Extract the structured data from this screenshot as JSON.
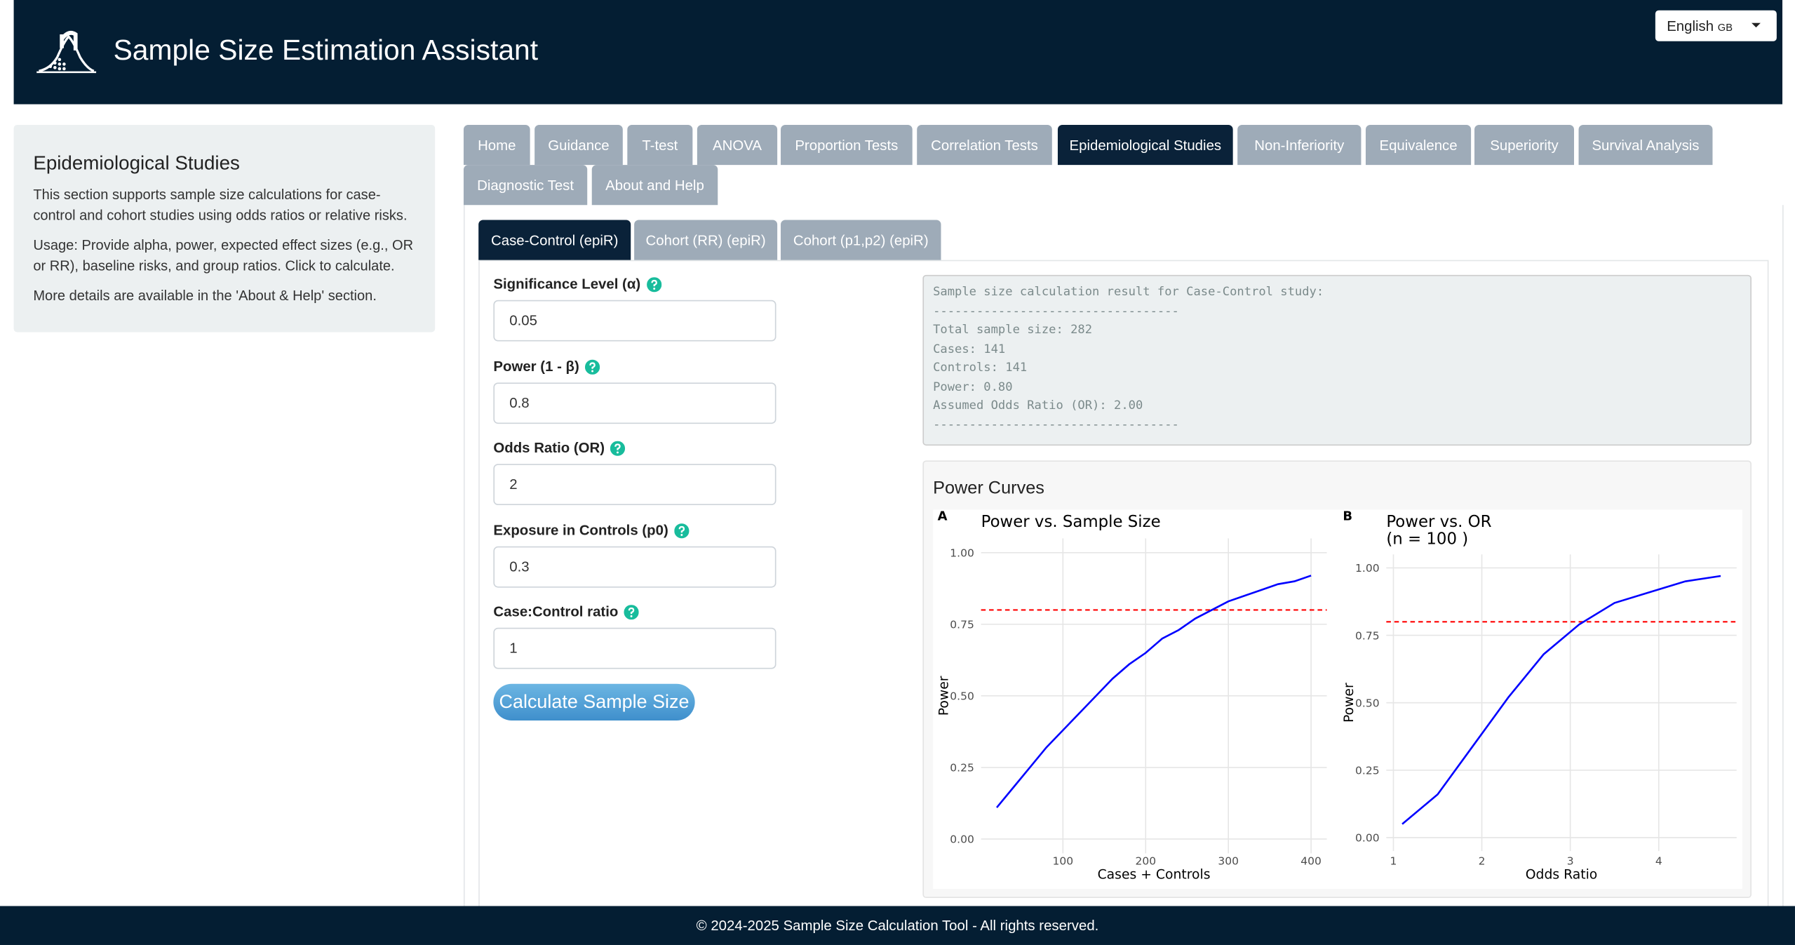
{
  "header": {
    "title": "Sample Size Estimation Assistant",
    "language": "English",
    "language_region": "GB"
  },
  "sidebar": {
    "title": "Epidemiological Studies",
    "paragraphs": [
      "This section supports sample size calculations for case-control and cohort studies using odds ratios or relative risks.",
      "Usage: Provide alpha, power, expected effect sizes (e.g., OR or RR), baseline risks, and group ratios. Click to calculate.",
      "More details are available in the 'About & Help' section."
    ]
  },
  "tabs": [
    "Home",
    "Guidance",
    "T-test",
    "ANOVA",
    "Proportion Tests",
    "Correlation Tests",
    "Epidemiological Studies",
    "Non-Inferiority",
    "Equivalence",
    "Superiority",
    "Survival Analysis",
    "Diagnostic Test",
    "About and Help"
  ],
  "active_tab": 6,
  "subtabs": [
    "Case-Control (epiR)",
    "Cohort (RR) (epiR)",
    "Cohort (p1,p2) (epiR)"
  ],
  "active_subtab": 0,
  "form": {
    "fields": [
      {
        "label": "Significance Level (α)",
        "value": "0.05"
      },
      {
        "label": "Power (1 - β)",
        "value": "0.8"
      },
      {
        "label": "Odds Ratio (OR)",
        "value": "2"
      },
      {
        "label": "Exposure in Controls (p0)",
        "value": "0.3"
      },
      {
        "label": "Case:Control ratio",
        "value": "1"
      }
    ],
    "button": "Calculate Sample Size"
  },
  "result": {
    "lines": [
      "Sample size calculation result for Case-Control study:",
      "----------------------------------",
      "Total sample size: 282",
      "Cases: 141",
      "Controls: 141",
      "Power: 0.80",
      "Assumed Odds Ratio (OR): 2.00",
      "----------------------------------"
    ]
  },
  "power_curves": {
    "title": "Power Curves"
  },
  "chart_data": [
    {
      "type": "line",
      "panel_label": "A",
      "title": "Power vs. Sample Size",
      "x_label": "Cases + Controls",
      "y_label": "Power",
      "x": [
        20,
        40,
        60,
        80,
        100,
        120,
        140,
        160,
        180,
        200,
        220,
        240,
        260,
        280,
        300,
        320,
        340,
        360,
        380,
        400
      ],
      "values": [
        0.11,
        0.18,
        0.25,
        0.32,
        0.38,
        0.44,
        0.5,
        0.56,
        0.61,
        0.65,
        0.7,
        0.73,
        0.77,
        0.8,
        0.83,
        0.85,
        0.87,
        0.89,
        0.9,
        0.92
      ],
      "color": "#0000ff",
      "reference_line": {
        "value": 0.8,
        "color": "#ff0000"
      },
      "xlim": [
        1,
        419
      ],
      "xticks": [
        100,
        200,
        300,
        400
      ],
      "ylim": [
        -0.05,
        1.05
      ],
      "yticks": [
        {
          "value": 0,
          "label": "0.00"
        },
        0.25,
        {
          "value": 0.5,
          "label": "0.50"
        },
        0.75,
        {
          "value": 1,
          "label": "1.00"
        }
      ],
      "grid": true
    },
    {
      "type": "line",
      "panel_label": "B",
      "title": "Power vs. OR",
      "subtitle": "(n = 100 )",
      "x_label": "Odds Ratio",
      "y_label": "Power",
      "x": [
        1.1,
        1.5,
        1.9,
        2.3,
        2.7,
        3.1,
        3.5,
        3.9,
        4.3,
        4.7
      ],
      "values": [
        0.05,
        0.16,
        0.34,
        0.52,
        0.68,
        0.79,
        0.87,
        0.91,
        0.95,
        0.97
      ],
      "color": "#0000ff",
      "reference_line": {
        "value": 0.8,
        "color": "#ff0000"
      },
      "xlim": [
        0.92,
        4.88
      ],
      "xticks": [
        1,
        2,
        3,
        4
      ],
      "ylim": [
        -0.05,
        1.05
      ],
      "yticks": [
        {
          "value": 0,
          "label": "0.00"
        },
        0.25,
        {
          "value": 0.5,
          "label": "0.50"
        },
        0.75,
        {
          "value": 1,
          "label": "1.00"
        }
      ],
      "grid": true
    }
  ],
  "footer": "© 2024-2025 Sample Size Calculation Tool - All rights reserved."
}
